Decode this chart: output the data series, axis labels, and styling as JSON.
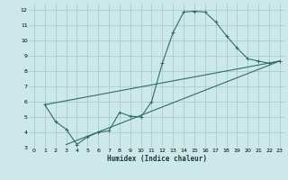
{
  "xlabel": "Humidex (Indice chaleur)",
  "bg_color": "#cce8e8",
  "grid_color": "#aacccc",
  "line_color": "#2d6e65",
  "xlim": [
    -0.5,
    23.5
  ],
  "ylim": [
    3,
    12.4
  ],
  "xticks": [
    0,
    1,
    2,
    3,
    4,
    5,
    6,
    7,
    8,
    9,
    10,
    11,
    12,
    13,
    14,
    15,
    16,
    17,
    18,
    19,
    20,
    21,
    22,
    23
  ],
  "yticks": [
    3,
    4,
    5,
    6,
    7,
    8,
    9,
    10,
    11,
    12
  ],
  "curve1_x": [
    1,
    2,
    3,
    4,
    5,
    6,
    7,
    8,
    9,
    10,
    11,
    12,
    13,
    14,
    15,
    16,
    17,
    18,
    19,
    20,
    21,
    22,
    23
  ],
  "curve1_y": [
    5.8,
    4.7,
    4.2,
    3.2,
    3.7,
    4.0,
    4.1,
    5.3,
    5.05,
    5.0,
    6.0,
    8.5,
    10.5,
    11.85,
    11.9,
    11.85,
    11.2,
    10.3,
    9.5,
    8.8,
    8.65,
    8.5,
    8.65
  ],
  "curve2_x": [
    3,
    23
  ],
  "curve2_y": [
    3.2,
    8.65
  ],
  "curve3_x": [
    1,
    23
  ],
  "curve3_y": [
    5.8,
    8.65
  ]
}
